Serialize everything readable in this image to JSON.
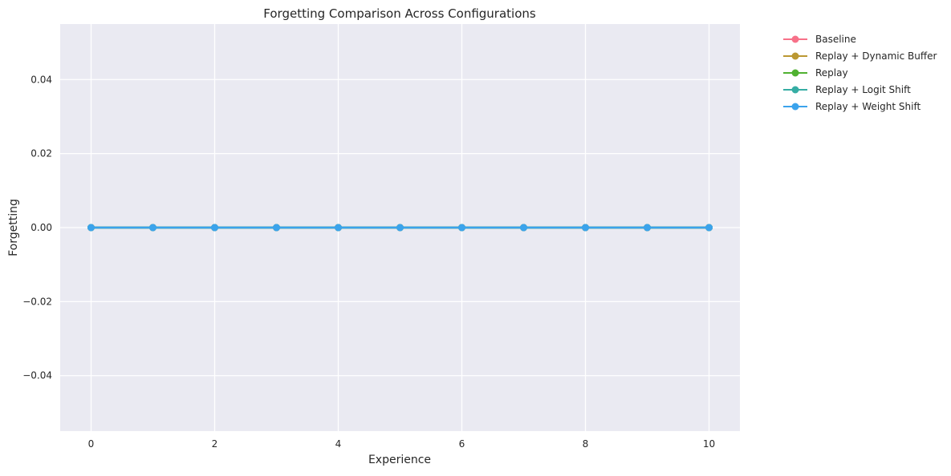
{
  "chart_data": {
    "type": "line",
    "title": "Forgetting Comparison Across Configurations",
    "xlabel": "Experience",
    "ylabel": "Forgetting",
    "xlim": [
      -0.5,
      10.5
    ],
    "ylim": [
      -0.055,
      0.055
    ],
    "x_ticks": [
      0,
      2,
      4,
      6,
      8,
      10
    ],
    "x_tick_labels": [
      "0",
      "2",
      "4",
      "6",
      "8",
      "10"
    ],
    "y_ticks": [
      0.04,
      0.02,
      0.0,
      -0.02,
      -0.04
    ],
    "y_tick_labels": [
      "0.04",
      "0.02",
      "0.00",
      "−0.02",
      "−0.04"
    ],
    "x": [
      0,
      1,
      2,
      3,
      4,
      5,
      6,
      7,
      8,
      9,
      10
    ],
    "grid": true,
    "legend_position": "outside-top-right",
    "background_color": "#eaeaf2",
    "series": [
      {
        "name": "Baseline",
        "color": "#f77189",
        "values": [
          0,
          0,
          0,
          0,
          0,
          0,
          0,
          0,
          0,
          0,
          0
        ]
      },
      {
        "name": "Replay + Dynamic Buffer",
        "color": "#bb9832",
        "values": [
          0,
          0,
          0,
          0,
          0,
          0,
          0,
          0,
          0,
          0,
          0
        ]
      },
      {
        "name": "Replay",
        "color": "#50b131",
        "values": [
          0,
          0,
          0,
          0,
          0,
          0,
          0,
          0,
          0,
          0,
          0
        ]
      },
      {
        "name": "Replay + Logit Shift",
        "color": "#36ada4",
        "values": [
          0,
          0,
          0,
          0,
          0,
          0,
          0,
          0,
          0,
          0,
          0
        ]
      },
      {
        "name": "Replay + Weight Shift",
        "color": "#3ba3ec",
        "values": [
          0,
          0,
          0,
          0,
          0,
          0,
          0,
          0,
          0,
          0,
          0
        ]
      }
    ]
  }
}
